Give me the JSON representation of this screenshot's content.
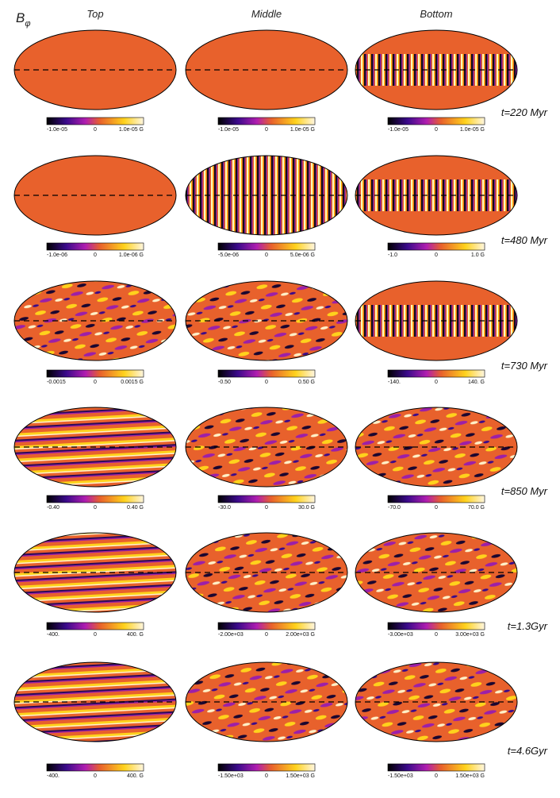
{
  "symbol": {
    "base": "B",
    "sub": "φ"
  },
  "columns": [
    "Top",
    "Middle",
    "Bottom"
  ],
  "rows": [
    {
      "time": "t=220 Myr",
      "colorbars": [
        [
          "-1.0e-05",
          "0",
          "1.0e-05 G"
        ],
        [
          "-1.0e-05",
          "0",
          "1.0e-05 G"
        ],
        [
          "-1.0e-05",
          "0",
          "1.0e-05 G"
        ]
      ]
    },
    {
      "time": "t=480 Myr",
      "colorbars": [
        [
          "-1.0e-06",
          "0",
          "1.0e-06 G"
        ],
        [
          "-5.0e-06",
          "0",
          "5.0e-06 G"
        ],
        [
          "-1.0",
          "0",
          "1.0 G"
        ]
      ]
    },
    {
      "time": "t=730 Myr",
      "colorbars": [
        [
          "-0.0015",
          "0",
          "0.0015 G"
        ],
        [
          "-0.50",
          "0",
          "0.50 G"
        ],
        [
          "-140.",
          "0",
          "140. G"
        ]
      ]
    },
    {
      "time": "t=850 Myr",
      "colorbars": [
        [
          "-0.40",
          "0",
          "0.40 G"
        ],
        [
          "-30.0",
          "0",
          "30.0 G"
        ],
        [
          "-70.0",
          "0",
          "70.0 G"
        ]
      ]
    },
    {
      "time": "t=1.3Gyr",
      "colorbars": [
        [
          "-400.",
          "0",
          "400. G"
        ],
        [
          "-2.00e+03",
          "0",
          "2.00e+03 G"
        ],
        [
          "-3.00e+03",
          "0",
          "3.00e+03 G"
        ]
      ]
    },
    {
      "time": "t=4.6Gyr",
      "colorbars": [
        [
          "-400.",
          "0",
          "400. G"
        ],
        [
          "-1.50e+03",
          "0",
          "1.50e+03 G"
        ],
        [
          "-1.50e+03",
          "0",
          "1.50e+03 G"
        ]
      ]
    }
  ]
}
